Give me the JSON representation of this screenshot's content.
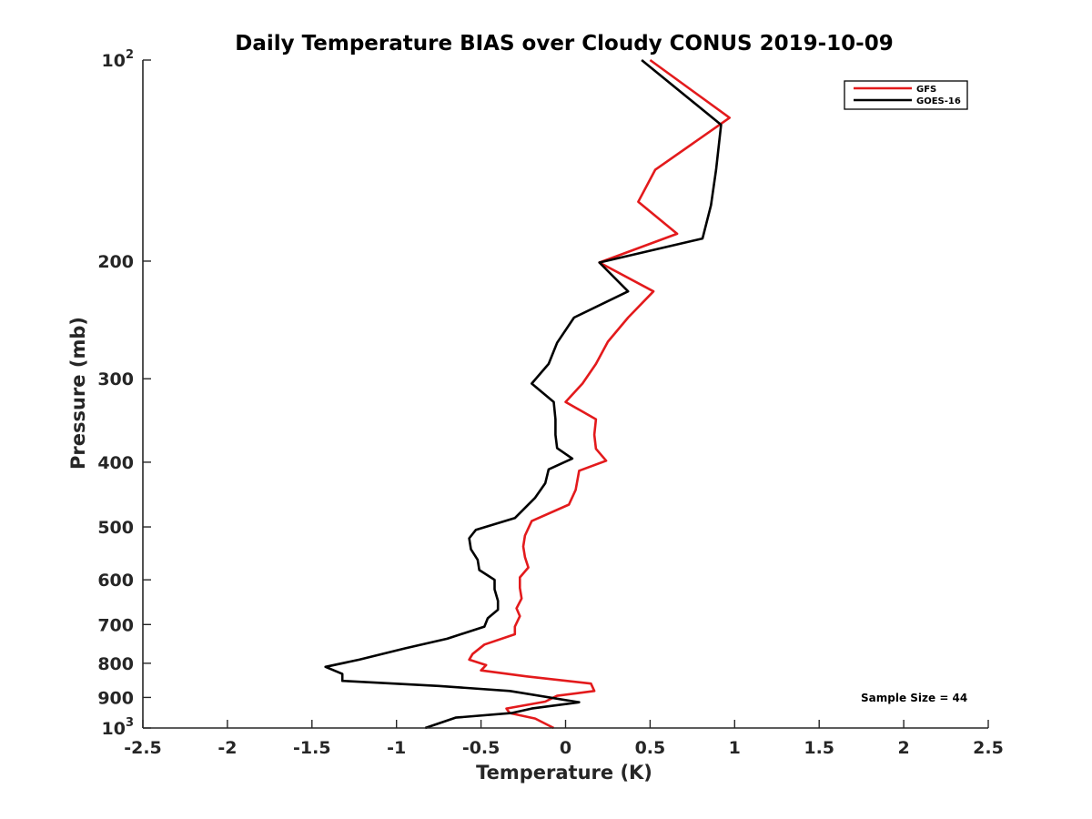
{
  "chart_data": {
    "type": "line",
    "title": "Daily Temperature BIAS over Cloudy CONUS 2019-10-09",
    "xlabel": "Temperature (K)",
    "ylabel": "Pressure (mb)",
    "xlim": [
      -2.5,
      2.5
    ],
    "ylim": [
      100,
      1000
    ],
    "y_scale": "log",
    "y_reversed": true,
    "grid": false,
    "legend_position": "top-right",
    "x_ticks": [
      "-2.5",
      "-2",
      "-1.5",
      "-1",
      "-0.5",
      "0",
      "0.5",
      "1",
      "1.5",
      "2",
      "2.5"
    ],
    "y_ticks": [
      {
        "value": 100,
        "label": "10",
        "sup": "2"
      },
      {
        "value": 200,
        "label": "200",
        "sup": ""
      },
      {
        "value": 300,
        "label": "300",
        "sup": ""
      },
      {
        "value": 400,
        "label": "400",
        "sup": ""
      },
      {
        "value": 500,
        "label": "500",
        "sup": ""
      },
      {
        "value": 600,
        "label": "600",
        "sup": ""
      },
      {
        "value": 700,
        "label": "700",
        "sup": ""
      },
      {
        "value": 800,
        "label": "800",
        "sup": ""
      },
      {
        "value": 900,
        "label": "900",
        "sup": ""
      },
      {
        "value": 1000,
        "label": "10",
        "sup": "3"
      }
    ],
    "series": [
      {
        "name": "GFS",
        "color": "#e31a1c",
        "x": [
          0.5,
          0.97,
          0.53,
          0.43,
          0.66,
          0.2,
          0.52,
          0.37,
          0.25,
          0.18,
          0.1,
          0.0,
          0.18,
          0.17,
          0.18,
          0.24,
          0.08,
          0.06,
          0.02,
          -0.2,
          -0.24,
          -0.25,
          -0.24,
          -0.22,
          -0.27,
          -0.27,
          -0.26,
          -0.29,
          -0.27,
          -0.3,
          -0.3,
          -0.48,
          -0.55,
          -0.57,
          -0.47,
          -0.5,
          -0.23,
          0.15,
          0.17,
          -0.05,
          -0.12,
          -0.35,
          -0.33,
          -0.18,
          -0.07
        ],
        "y": [
          100,
          122,
          146,
          163,
          182,
          201,
          222,
          243,
          264,
          285,
          305,
          325,
          345,
          364,
          382,
          398,
          412,
          440,
          463,
          490,
          515,
          535,
          555,
          575,
          595,
          617,
          640,
          662,
          680,
          705,
          724,
          750,
          775,
          790,
          805,
          820,
          837,
          858,
          880,
          895,
          913,
          935,
          950,
          968,
          1000
        ]
      },
      {
        "name": "GOES-16",
        "color": "#000000",
        "x": [
          0.45,
          0.92,
          0.89,
          0.86,
          0.81,
          0.2,
          0.37,
          0.05,
          -0.05,
          -0.1,
          -0.2,
          -0.07,
          -0.06,
          -0.06,
          -0.05,
          0.04,
          -0.1,
          -0.12,
          -0.18,
          -0.3,
          -0.53,
          -0.57,
          -0.56,
          -0.52,
          -0.51,
          -0.42,
          -0.42,
          -0.4,
          -0.4,
          -0.46,
          -0.48,
          -0.7,
          -0.95,
          -1.22,
          -1.42,
          -1.32,
          -1.32,
          -0.75,
          -0.33,
          0.08,
          -0.2,
          -0.32,
          -0.65,
          -0.83
        ],
        "y": [
          100,
          125,
          146,
          165,
          185,
          201,
          222,
          243,
          265,
          285,
          305,
          325,
          345,
          364,
          381,
          395,
          410,
          430,
          452,
          485,
          505,
          520,
          540,
          560,
          580,
          600,
          620,
          645,
          665,
          685,
          705,
          735,
          760,
          790,
          810,
          830,
          850,
          865,
          880,
          915,
          935,
          950,
          965,
          1000
        ]
      }
    ],
    "annotation": "Sample Size = 44"
  }
}
